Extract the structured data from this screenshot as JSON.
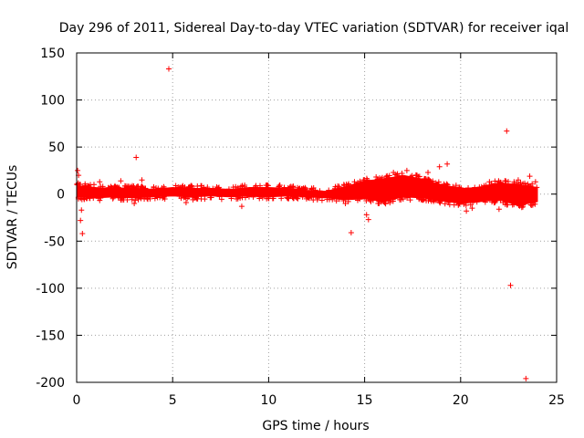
{
  "chart_data": {
    "type": "scatter",
    "title": "Day 296 of 2011, Sidereal Day-to-day VTEC variation (SDTVAR) for receiver iqal",
    "xlabel": "GPS time / hours",
    "ylabel": "SDTVAR / TECUs",
    "xlim": [
      0,
      25
    ],
    "ylim": [
      -200,
      150
    ],
    "x_ticks": [
      0,
      5,
      10,
      15,
      20,
      25
    ],
    "y_ticks": [
      -200,
      -150,
      -100,
      -50,
      0,
      50,
      100,
      150
    ],
    "x_tick_labels": [
      "0",
      "5",
      "10",
      "15",
      "20",
      "25"
    ],
    "y_tick_labels": [
      "-200",
      "-150",
      "-100",
      "-50",
      "0",
      "50",
      "100",
      "150"
    ],
    "grid": true,
    "marker": "+",
    "series_color": "#ff0000",
    "band_envelope": [
      {
        "x": 0.0,
        "low": -3,
        "high": 9
      },
      {
        "x": 1.0,
        "low": -4,
        "high": 7
      },
      {
        "x": 2.0,
        "low": -3,
        "high": 6
      },
      {
        "x": 3.0,
        "low": -4,
        "high": 6
      },
      {
        "x": 4.0,
        "low": -3,
        "high": 5
      },
      {
        "x": 5.0,
        "low": -2,
        "high": 7
      },
      {
        "x": 6.0,
        "low": -3,
        "high": 6
      },
      {
        "x": 7.0,
        "low": -2,
        "high": 6
      },
      {
        "x": 8.0,
        "low": -3,
        "high": 5
      },
      {
        "x": 9.0,
        "low": -2,
        "high": 7
      },
      {
        "x": 10.0,
        "low": -3,
        "high": 7
      },
      {
        "x": 11.0,
        "low": -2,
        "high": 6
      },
      {
        "x": 12.0,
        "low": -3,
        "high": 4
      },
      {
        "x": 13.0,
        "low": -4,
        "high": 3
      },
      {
        "x": 14.0,
        "low": -6,
        "high": 8
      },
      {
        "x": 15.0,
        "low": -5,
        "high": 14
      },
      {
        "x": 16.0,
        "low": -8,
        "high": 16
      },
      {
        "x": 17.0,
        "low": -3,
        "high": 20
      },
      {
        "x": 18.0,
        "low": -4,
        "high": 16
      },
      {
        "x": 19.0,
        "low": -7,
        "high": 10
      },
      {
        "x": 20.0,
        "low": -10,
        "high": 6
      },
      {
        "x": 21.0,
        "low": -8,
        "high": 7
      },
      {
        "x": 22.0,
        "low": -6,
        "high": 12
      },
      {
        "x": 23.0,
        "low": -12,
        "high": 10
      },
      {
        "x": 24.0,
        "low": -8,
        "high": 7
      }
    ],
    "outliers": [
      {
        "x": 0.05,
        "y": 25
      },
      {
        "x": 0.1,
        "y": 20
      },
      {
        "x": 0.25,
        "y": -17
      },
      {
        "x": 0.3,
        "y": -42
      },
      {
        "x": 0.2,
        "y": -28
      },
      {
        "x": 1.2,
        "y": 13
      },
      {
        "x": 2.3,
        "y": 14
      },
      {
        "x": 3.0,
        "y": -10
      },
      {
        "x": 3.1,
        "y": 39
      },
      {
        "x": 3.4,
        "y": 15
      },
      {
        "x": 4.8,
        "y": 133
      },
      {
        "x": 5.7,
        "y": -9
      },
      {
        "x": 8.6,
        "y": -13
      },
      {
        "x": 14.0,
        "y": -10
      },
      {
        "x": 14.3,
        "y": -41
      },
      {
        "x": 15.1,
        "y": -22
      },
      {
        "x": 15.2,
        "y": -27
      },
      {
        "x": 15.7,
        "y": -10
      },
      {
        "x": 16.5,
        "y": 23
      },
      {
        "x": 17.2,
        "y": 25
      },
      {
        "x": 18.3,
        "y": 23
      },
      {
        "x": 18.9,
        "y": 29
      },
      {
        "x": 19.3,
        "y": 32
      },
      {
        "x": 20.3,
        "y": -18
      },
      {
        "x": 20.6,
        "y": -15
      },
      {
        "x": 21.5,
        "y": 13
      },
      {
        "x": 22.0,
        "y": -16
      },
      {
        "x": 22.4,
        "y": 67
      },
      {
        "x": 22.6,
        "y": -97
      },
      {
        "x": 23.0,
        "y": 15
      },
      {
        "x": 23.4,
        "y": -196
      },
      {
        "x": 23.6,
        "y": 19
      },
      {
        "x": 23.9,
        "y": 13
      }
    ]
  }
}
